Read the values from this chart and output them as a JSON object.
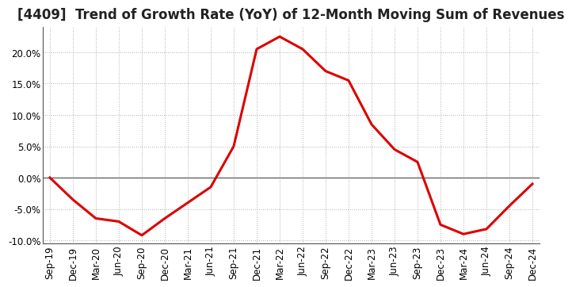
{
  "title": "[4409]  Trend of Growth Rate (YoY) of 12-Month Moving Sum of Revenues",
  "line_color": "#dd0000",
  "line_width": 2.2,
  "background_color": "#ffffff",
  "grid_color": "#999999",
  "x_labels": [
    "Sep-19",
    "Dec-19",
    "Mar-20",
    "Jun-20",
    "Sep-20",
    "Dec-20",
    "Mar-21",
    "Jun-21",
    "Sep-21",
    "Dec-21",
    "Mar-22",
    "Jun-22",
    "Sep-22",
    "Dec-22",
    "Mar-23",
    "Jun-23",
    "Sep-23",
    "Dec-23",
    "Mar-24",
    "Jun-24",
    "Sep-24",
    "Dec-24"
  ],
  "y_values": [
    0.0,
    -3.5,
    -6.5,
    -7.0,
    -9.2,
    -6.5,
    -4.0,
    -1.5,
    5.0,
    20.5,
    22.5,
    20.5,
    17.0,
    15.5,
    8.5,
    4.5,
    2.5,
    -7.5,
    -9.0,
    -8.2,
    -4.5,
    -1.0
  ],
  "ylim": [
    -10.5,
    24.0
  ],
  "yticks": [
    -10.0,
    -5.0,
    0.0,
    5.0,
    10.0,
    15.0,
    20.0
  ],
  "title_fontsize": 12,
  "tick_fontsize": 8.5,
  "zero_line_color": "#555555",
  "spine_color": "#555555"
}
